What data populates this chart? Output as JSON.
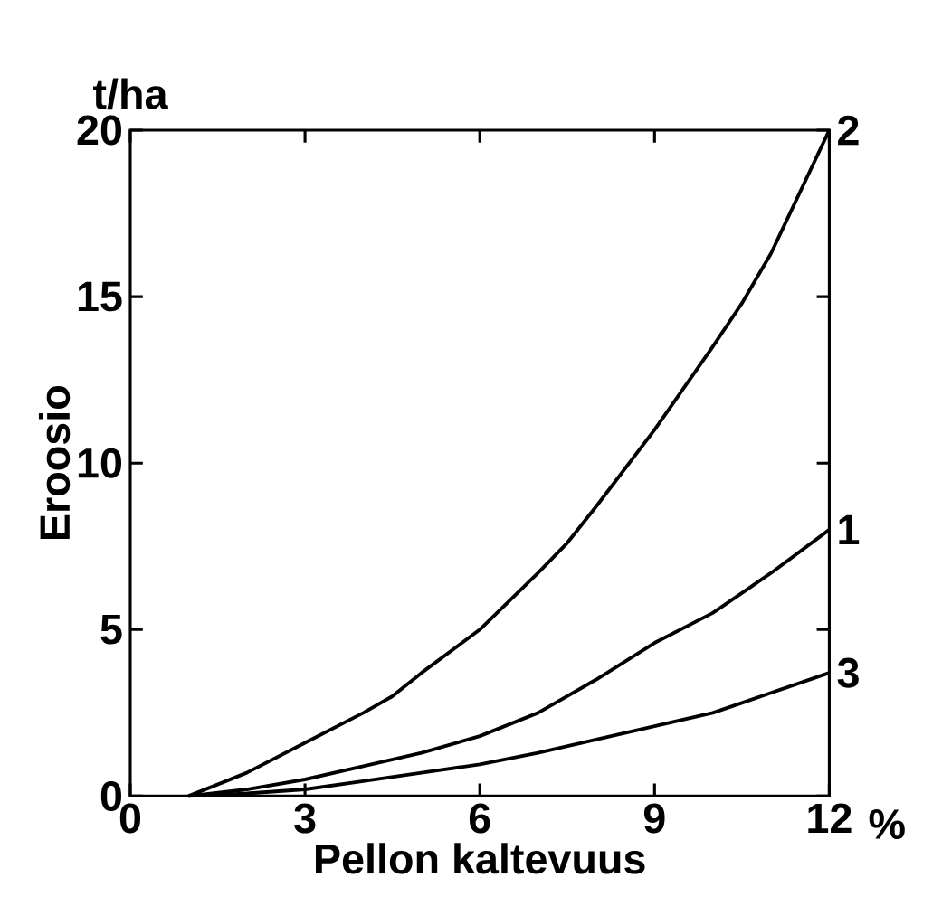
{
  "chart_data": {
    "type": "line",
    "xlabel": "Pellon kaltevuus",
    "ylabel": "Eroosio",
    "annotations": [
      "t/ha",
      "%"
    ],
    "xlim": [
      0,
      12
    ],
    "ylim": [
      0,
      20
    ],
    "xticks": [
      0,
      3,
      6,
      9,
      12
    ],
    "yticks": [
      0,
      5,
      10,
      15,
      20
    ],
    "grid": false,
    "legend": "right",
    "marker": "none",
    "line_style": "solid",
    "series": [
      {
        "name": "2",
        "color": "#000000",
        "x": [
          1,
          2,
          3,
          4,
          4.5,
          5,
          6,
          7,
          7.5,
          8,
          9,
          10,
          10.5,
          11,
          12
        ],
        "values": [
          0,
          0.7,
          1.6,
          2.5,
          3.0,
          3.7,
          5.0,
          6.7,
          7.6,
          8.7,
          11.0,
          13.5,
          14.8,
          16.3,
          20
        ]
      },
      {
        "name": "1",
        "color": "#000000",
        "x": [
          1,
          2,
          3,
          4,
          5,
          6,
          7,
          8,
          9,
          10,
          10.5,
          11,
          12
        ],
        "values": [
          0,
          0.2,
          0.5,
          0.9,
          1.3,
          1.8,
          2.5,
          3.5,
          4.6,
          5.5,
          6.1,
          6.7,
          8
        ]
      },
      {
        "name": "3",
        "color": "#000000",
        "x": [
          1,
          2,
          3,
          4,
          5,
          6,
          7,
          8,
          9,
          10,
          10.5,
          11,
          12
        ],
        "values": [
          0,
          0.08,
          0.2,
          0.45,
          0.7,
          0.95,
          1.3,
          1.7,
          2.1,
          2.5,
          2.8,
          3.1,
          3.7
        ]
      }
    ]
  }
}
